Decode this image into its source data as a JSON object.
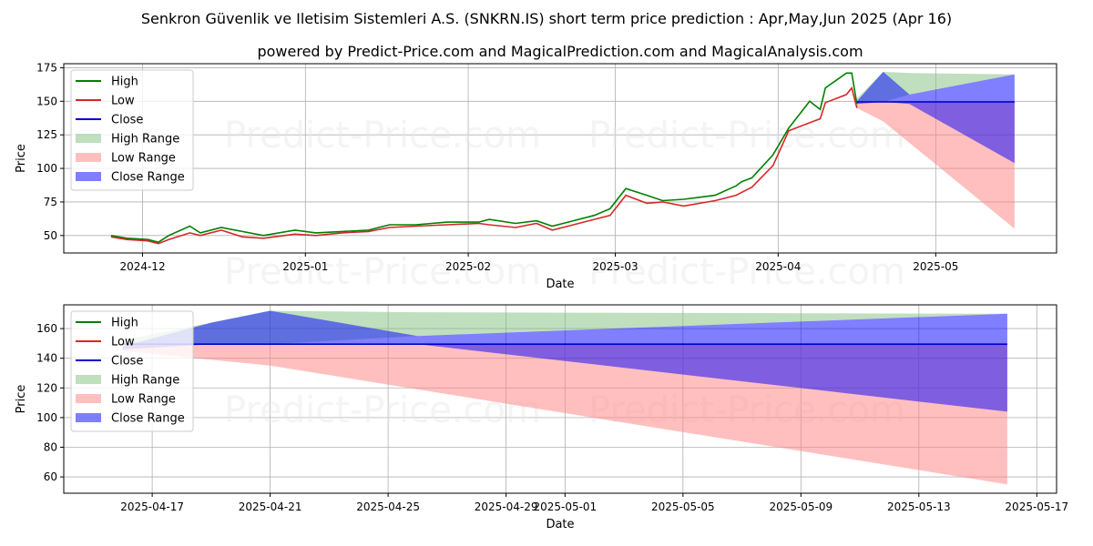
{
  "title": "Senkron Güvenlik ve Iletisim Sistemleri A.S. (SNKRN.IS) short term price prediction : Apr,May,Jun 2025 (Apr 16)",
  "subtitle": "powered by Predict-Price.com and MagicalPrediction.com and MagicalAnalysis.com",
  "watermark": "Predict-Price.com",
  "colors": {
    "high": "#008000",
    "low": "#d62728",
    "close": "#0000cc",
    "high_range": "#7fbf7f",
    "low_range": "#ff7f7f",
    "close_range": "#0000ff"
  },
  "legend": [
    "High",
    "Low",
    "Close",
    "High Range",
    "Low Range",
    "Close Range"
  ],
  "chart_data": [
    {
      "type": "line",
      "xlabel": "Date",
      "ylabel": "Price",
      "x_ticks": [
        "2024-12",
        "2025-01",
        "2025-02",
        "2025-03",
        "2025-04",
        "2025-05"
      ],
      "y_ticks": [
        "50",
        "75",
        "100",
        "125",
        "150",
        "175"
      ],
      "ylim": [
        37,
        178
      ],
      "grid": true,
      "legend_position": "top-left",
      "series": [
        {
          "name": "High",
          "x": [
            "2024-11-25",
            "2024-11-28",
            "2024-12-02",
            "2024-12-04",
            "2024-12-06",
            "2024-12-10",
            "2024-12-12",
            "2024-12-16",
            "2024-12-20",
            "2024-12-24",
            "2024-12-30",
            "2025-01-03",
            "2025-01-08",
            "2025-01-13",
            "2025-01-17",
            "2025-01-22",
            "2025-01-28",
            "2025-02-03",
            "2025-02-05",
            "2025-02-10",
            "2025-02-14",
            "2025-02-17",
            "2025-02-20",
            "2025-02-25",
            "2025-02-28",
            "2025-03-03",
            "2025-03-07",
            "2025-03-10",
            "2025-03-14",
            "2025-03-20",
            "2025-03-24",
            "2025-03-25",
            "2025-03-27",
            "2025-03-31",
            "2025-04-03",
            "2025-04-07",
            "2025-04-09",
            "2025-04-10",
            "2025-04-14",
            "2025-04-15",
            "2025-04-16"
          ],
          "values": [
            50,
            48,
            47,
            45,
            50,
            57,
            52,
            56,
            53,
            50,
            54,
            52,
            53,
            54,
            58,
            58,
            60,
            60,
            62,
            59,
            61,
            57,
            60,
            65,
            70,
            85,
            80,
            76,
            77,
            80,
            87,
            90,
            93,
            110,
            130,
            150,
            144,
            160,
            171,
            171,
            148
          ]
        },
        {
          "name": "Low",
          "x": [
            "2024-11-25",
            "2024-11-28",
            "2024-12-02",
            "2024-12-04",
            "2024-12-06",
            "2024-12-10",
            "2024-12-12",
            "2024-12-16",
            "2024-12-20",
            "2024-12-24",
            "2024-12-30",
            "2025-01-03",
            "2025-01-08",
            "2025-01-13",
            "2025-01-17",
            "2025-01-22",
            "2025-01-28",
            "2025-02-03",
            "2025-02-05",
            "2025-02-10",
            "2025-02-14",
            "2025-02-17",
            "2025-02-20",
            "2025-02-25",
            "2025-02-28",
            "2025-03-03",
            "2025-03-07",
            "2025-03-10",
            "2025-03-14",
            "2025-03-20",
            "2025-03-24",
            "2025-03-25",
            "2025-03-27",
            "2025-03-31",
            "2025-04-03",
            "2025-04-07",
            "2025-04-09",
            "2025-04-10",
            "2025-04-14",
            "2025-04-15",
            "2025-04-16"
          ],
          "values": [
            49,
            47,
            46,
            44,
            47,
            52,
            50,
            54,
            49,
            48,
            51,
            50,
            52,
            53,
            56,
            57,
            58,
            59,
            58,
            56,
            59,
            54,
            57,
            62,
            65,
            80,
            74,
            75,
            72,
            76,
            80,
            82,
            86,
            102,
            128,
            134,
            137,
            149,
            155,
            160,
            145
          ]
        },
        {
          "name": "Close",
          "x": [
            "2025-04-16",
            "2025-05-16"
          ],
          "values": [
            149.5,
            149.5
          ]
        },
        {
          "name": "High Range",
          "x": [
            "2025-04-16",
            "2025-04-21",
            "2025-04-26",
            "2025-05-16"
          ],
          "upper": [
            152,
            172,
            171,
            170
          ],
          "lower": [
            149.5,
            149.5,
            155,
            170
          ]
        },
        {
          "name": "Low Range",
          "x": [
            "2025-04-16",
            "2025-04-21",
            "2025-05-16"
          ],
          "upper": [
            149.5,
            149.5,
            149.5
          ],
          "lower": [
            145,
            135,
            55
          ]
        },
        {
          "name": "Close Range",
          "x": [
            "2025-04-16",
            "2025-04-21",
            "2025-04-26",
            "2025-05-16"
          ],
          "upper": [
            150,
            172,
            155,
            170
          ],
          "lower": [
            148,
            149.5,
            148,
            104
          ]
        }
      ]
    },
    {
      "type": "line",
      "xlabel": "Date",
      "ylabel": "Price",
      "x_ticks": [
        "2025-04-17",
        "2025-04-21",
        "2025-04-25",
        "2025-04-29",
        "2025-05-01",
        "2025-05-05",
        "2025-05-09",
        "2025-05-13",
        "2025-05-17"
      ],
      "y_ticks": [
        "60",
        "80",
        "100",
        "120",
        "140",
        "160"
      ],
      "ylim": [
        49,
        176
      ],
      "grid": true,
      "legend_position": "top-left",
      "series": [
        {
          "name": "Close",
          "x": [
            "2025-04-16",
            "2025-05-16"
          ],
          "values": [
            149.5,
            149.5
          ]
        },
        {
          "name": "High Range",
          "x": [
            "2025-04-16",
            "2025-04-21",
            "2025-04-26",
            "2025-05-16"
          ],
          "upper": [
            152,
            172,
            171,
            170
          ],
          "lower": [
            149.5,
            149.5,
            155,
            170
          ]
        },
        {
          "name": "Low Range",
          "x": [
            "2025-04-16",
            "2025-04-21",
            "2025-05-16"
          ],
          "upper": [
            149.5,
            149.5,
            149.5
          ],
          "lower": [
            145,
            135,
            55
          ]
        },
        {
          "name": "Close Range",
          "x": [
            "2025-04-16",
            "2025-04-19",
            "2025-04-21",
            "2025-04-26",
            "2025-05-16"
          ],
          "upper": [
            148,
            164,
            172,
            155,
            170
          ],
          "lower": [
            146,
            149.5,
            149.5,
            149.5,
            104
          ]
        }
      ]
    }
  ]
}
